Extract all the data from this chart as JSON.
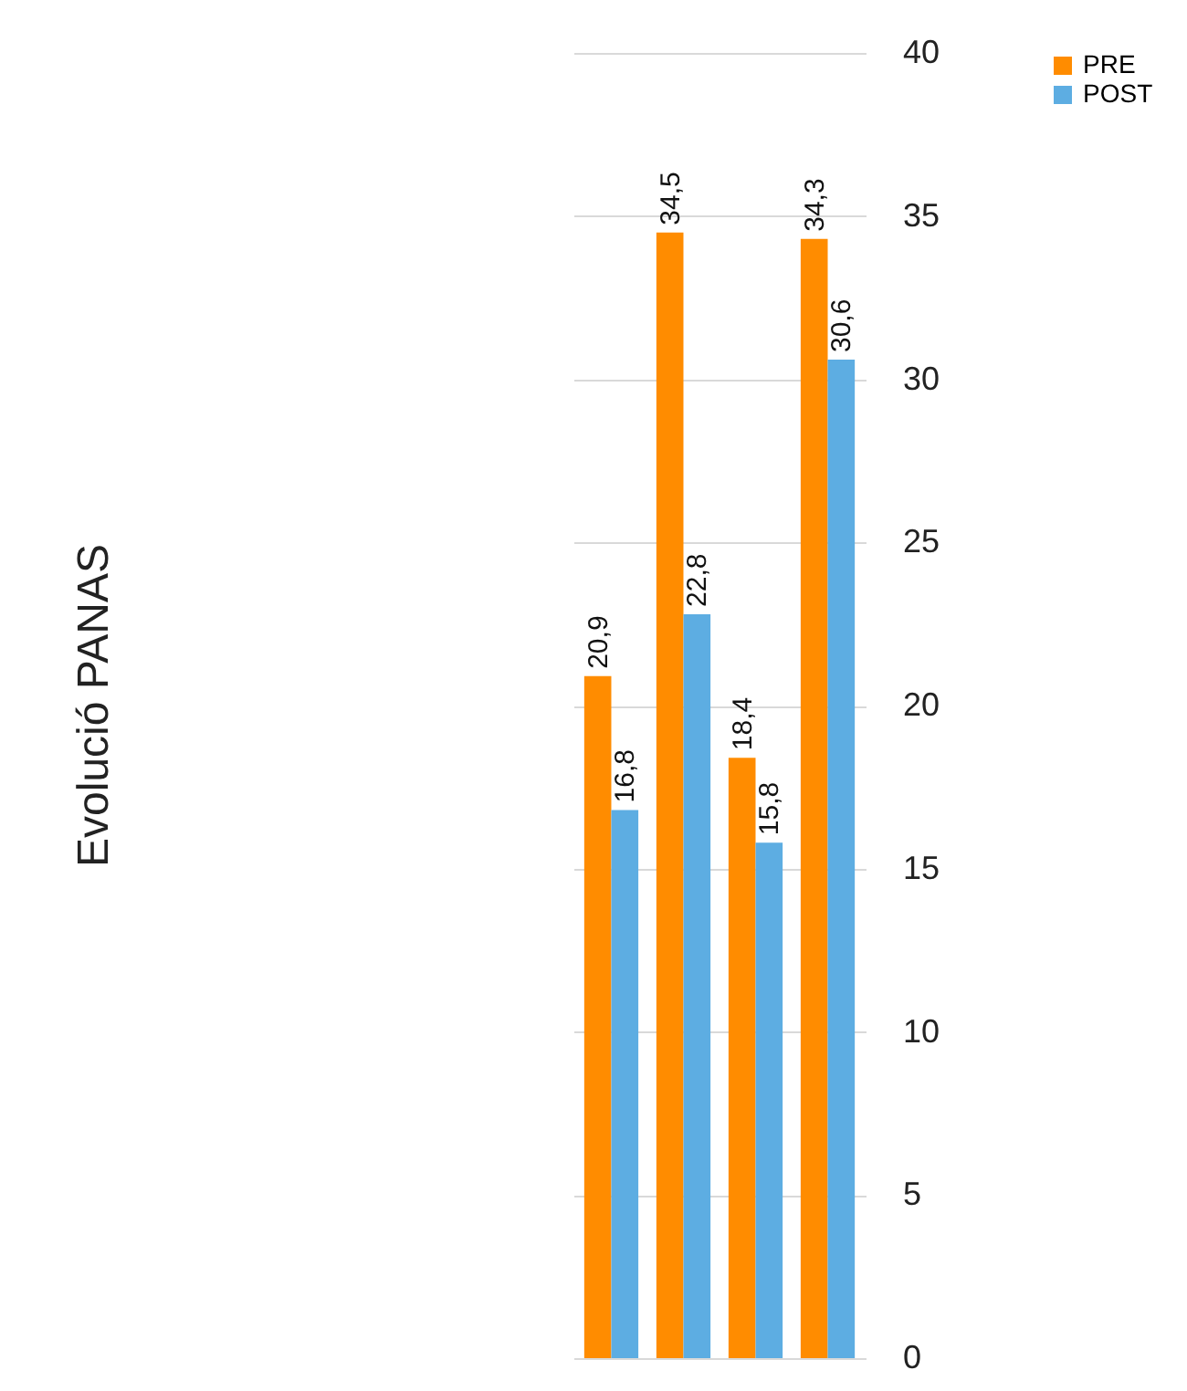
{
  "chart_data": {
    "type": "bar",
    "title": "Evolució PANAS",
    "categories": [
      null,
      null,
      null,
      null
    ],
    "series": [
      {
        "name": "PRE",
        "color": "#ff8c00",
        "values": [
          20.9,
          34.5,
          18.4,
          34.3
        ],
        "value_labels": [
          "20,9",
          "34,5",
          "18,4",
          "34,3"
        ]
      },
      {
        "name": "POST",
        "color": "#5dade2",
        "values": [
          16.8,
          22.8,
          15.8,
          30.6
        ],
        "value_labels": [
          "16,8",
          "22,8",
          "15,8",
          "30,6"
        ]
      }
    ],
    "ylim": [
      0,
      40
    ],
    "yticks": [
      0,
      5,
      10,
      15,
      20,
      25,
      30,
      35,
      40
    ],
    "grid": "y",
    "legend": "right"
  }
}
